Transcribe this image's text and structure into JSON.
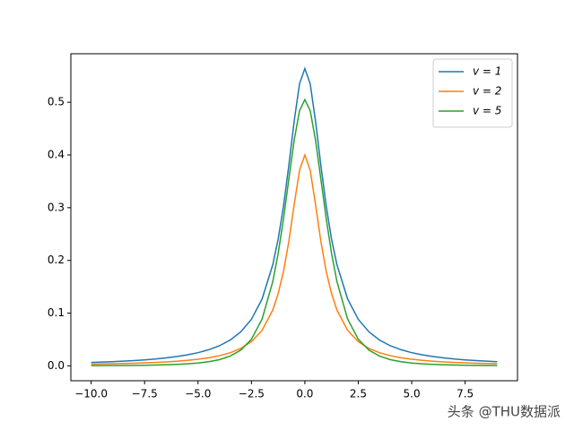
{
  "chart_data": {
    "type": "line",
    "x": [
      -10,
      -9.5,
      -9,
      -8.5,
      -8,
      -7.5,
      -7,
      -6.5,
      -6,
      -5.5,
      -5,
      -4.5,
      -4,
      -3.5,
      -3,
      -2.5,
      -2,
      -1.5,
      -1.25,
      -1,
      -0.75,
      -0.5,
      -0.25,
      0,
      0.25,
      0.5,
      0.75,
      1,
      1.25,
      1.5,
      2,
      2.5,
      3,
      3.5,
      4,
      4.5,
      5,
      5.5,
      6,
      6.5,
      7,
      7.5,
      8,
      8.5,
      9
    ],
    "series": [
      {
        "name": "v = 1",
        "color": "#1f77b4",
        "values": [
          0.0065,
          0.0072,
          0.008,
          0.0089,
          0.01,
          0.0114,
          0.013,
          0.0151,
          0.0176,
          0.0208,
          0.025,
          0.0306,
          0.0381,
          0.0488,
          0.0644,
          0.0883,
          0.127,
          0.192,
          0.24,
          0.303,
          0.38,
          0.464,
          0.535,
          0.564,
          0.535,
          0.464,
          0.38,
          0.303,
          0.24,
          0.192,
          0.127,
          0.0883,
          0.0644,
          0.0488,
          0.0381,
          0.0306,
          0.025,
          0.0208,
          0.0176,
          0.0151,
          0.013,
          0.0114,
          0.01,
          0.0089,
          0.008
        ]
      },
      {
        "name": "v = 2",
        "color": "#ff7f0e",
        "values": [
          0.0032,
          0.0036,
          0.004,
          0.0044,
          0.005,
          0.0057,
          0.0065,
          0.0075,
          0.0088,
          0.0104,
          0.0126,
          0.0154,
          0.0193,
          0.0248,
          0.033,
          0.0459,
          0.0674,
          0.106,
          0.137,
          0.179,
          0.236,
          0.306,
          0.371,
          0.4,
          0.371,
          0.306,
          0.236,
          0.179,
          0.137,
          0.106,
          0.0674,
          0.0459,
          0.033,
          0.0248,
          0.0193,
          0.0154,
          0.0126,
          0.0104,
          0.0088,
          0.0075,
          0.0065,
          0.0057,
          0.005,
          0.0044,
          0.004
        ]
      },
      {
        "name": "v = 5",
        "color": "#2ca02c",
        "values": [
          0.0004,
          0.0005,
          0.0006,
          0.0007,
          0.0009,
          0.0012,
          0.0016,
          0.0021,
          0.0028,
          0.0038,
          0.0054,
          0.0079,
          0.0118,
          0.0184,
          0.0298,
          0.0505,
          0.0889,
          0.16,
          0.213,
          0.279,
          0.354,
          0.428,
          0.484,
          0.505,
          0.484,
          0.428,
          0.354,
          0.279,
          0.213,
          0.16,
          0.0889,
          0.0505,
          0.0298,
          0.0184,
          0.0118,
          0.0079,
          0.0054,
          0.0038,
          0.0028,
          0.0021,
          0.0016,
          0.0012,
          0.0009,
          0.0007,
          0.0006
        ]
      }
    ],
    "xlim": [
      -10.95,
      9.95
    ],
    "ylim": [
      -0.0282,
      0.592
    ],
    "xticks": [
      {
        "value": -10,
        "label": "−10.0"
      },
      {
        "value": -7.5,
        "label": "−7.5"
      },
      {
        "value": -5,
        "label": "−5.0"
      },
      {
        "value": -2.5,
        "label": "−2.5"
      },
      {
        "value": 0,
        "label": "0.0"
      },
      {
        "value": 2.5,
        "label": "2.5"
      },
      {
        "value": 5,
        "label": "5.0"
      },
      {
        "value": 7.5,
        "label": "7.5"
      }
    ],
    "yticks": [
      {
        "value": 0,
        "label": "0.0"
      },
      0.1,
      0.2,
      0.3,
      0.4,
      0.5
    ],
    "legend": "upper right"
  },
  "watermark": "头条 @THU数据派"
}
